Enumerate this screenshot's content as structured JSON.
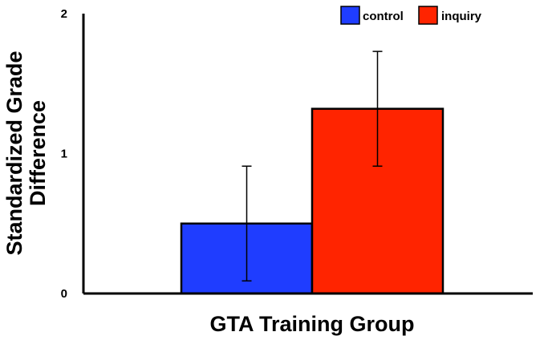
{
  "chart_data": {
    "type": "bar",
    "title": "",
    "xlabel": "GTA Training Group",
    "ylabel_lines": [
      "Standardized Grade",
      "Difference"
    ],
    "ylim": [
      0,
      2
    ],
    "yticks": [
      {
        "value": 0,
        "label": "0"
      },
      {
        "value": 1,
        "label": "1"
      },
      {
        "value": 2,
        "label": "2"
      }
    ],
    "grid": false,
    "legend_position": "top-right",
    "series": [
      {
        "name": "control",
        "value": 0.5,
        "error_low": 0.09,
        "error_high": 0.91,
        "color": "#1f3dff"
      },
      {
        "name": "inquiry",
        "value": 1.32,
        "error_low": 0.91,
        "error_high": 1.73,
        "color": "#ff2400"
      }
    ]
  }
}
